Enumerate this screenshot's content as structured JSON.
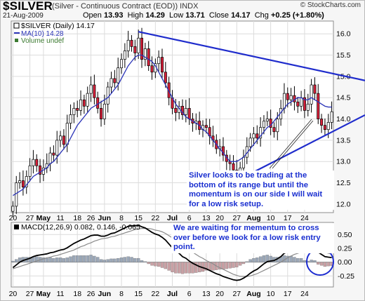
{
  "header": {
    "symbol": "$SILVER",
    "description": "(Silver - Continuous Contract (EOD))  INDX",
    "copyright": "© StockCharts.com",
    "date": "21-Aug-2009",
    "ohlc": {
      "open_label": "Open",
      "open": "13.93",
      "high_label": "High",
      "high": "14.29",
      "low_label": "Low",
      "low": "13.71",
      "close_label": "Close",
      "close": "14.17",
      "chg_label": "Chg",
      "chg": "+0.25 (+1.80%)"
    }
  },
  "colors": {
    "up": "#ffffff",
    "down": "#d9203a",
    "candle_outline": "#000000",
    "ma": "#2b34b8",
    "trend": "#1f2ccc",
    "macd": "#000000",
    "signal": "#8a8a8a",
    "hist_pos": "#9aa7b8",
    "hist_neg": "#c9a0a4",
    "circle": "#1c2bd0"
  },
  "chart_data": [
    {
      "type": "candlestick",
      "title": "$SILVER (Daily) 14.17",
      "legend": [
        "$SILVER (Daily) 14.17",
        "MA(10) 14.28",
        "Volume undef"
      ],
      "x_ticks": [
        "20",
        "27",
        "May",
        "11",
        "18",
        "26",
        "Jun",
        "8",
        "15",
        "22",
        "Jul",
        "6",
        "13",
        "20",
        "27",
        "Aug",
        "10",
        "17",
        "24"
      ],
      "y_ticks": [
        "12.0",
        "12.5",
        "13.0",
        "13.5",
        "14.0",
        "14.5",
        "15.0",
        "15.5",
        "16.0"
      ],
      "ylim": [
        11.8,
        16.3
      ],
      "grid": true,
      "closes": [
        11.95,
        12.5,
        12.55,
        12.4,
        12.65,
        12.9,
        13.05,
        12.9,
        12.7,
        12.85,
        12.95,
        13.2,
        13.15,
        13.5,
        13.6,
        13.4,
        13.9,
        14.1,
        14.25,
        14.2,
        14.45,
        14.3,
        14.6,
        14.8,
        14.5,
        14.25,
        14.0,
        14.35,
        14.75,
        14.95,
        14.85,
        15.2,
        15.4,
        15.6,
        15.85,
        15.7,
        15.55,
        15.9,
        15.4,
        15.65,
        15.25,
        15.1,
        15.3,
        15.45,
        15.1,
        14.85,
        14.5,
        14.25,
        14.15,
        14.3,
        14.1,
        14.25,
        14.0,
        13.9,
        13.95,
        13.75,
        13.85,
        13.8,
        13.6,
        13.5,
        13.3,
        13.35,
        13.15,
        13.0,
        12.95,
        12.8,
        12.75,
        12.85,
        13.1,
        13.35,
        13.55,
        13.65,
        13.55,
        13.8,
        13.95,
        14.0,
        13.8,
        13.7,
        14.0,
        14.25,
        14.6,
        14.45,
        14.55,
        14.4,
        14.3,
        14.5,
        14.2,
        14.35,
        14.8,
        14.6,
        14.0,
        13.85,
        13.75,
        13.92,
        14.17
      ],
      "ma10_label": "MA(10) 14.28",
      "ma10": [
        12.2,
        12.25,
        12.3,
        12.35,
        12.45,
        12.55,
        12.65,
        12.7,
        12.75,
        12.8,
        12.85,
        12.95,
        13.0,
        13.1,
        13.2,
        13.3,
        13.4,
        13.55,
        13.7,
        13.85,
        13.95,
        14.05,
        14.15,
        14.25,
        14.3,
        14.35,
        14.4,
        14.45,
        14.5,
        14.6,
        14.7,
        14.8,
        14.95,
        15.1,
        15.25,
        15.35,
        15.45,
        15.5,
        15.5,
        15.45,
        15.4,
        15.35,
        15.25,
        15.1,
        14.95,
        14.8,
        14.65,
        14.5,
        14.35,
        14.25,
        14.15,
        14.05,
        14.0,
        13.95,
        13.9,
        13.85,
        13.75,
        13.7,
        13.6,
        13.5,
        13.4,
        13.3,
        13.2,
        13.1,
        13.0,
        13.0,
        13.0,
        13.05,
        13.1,
        13.2,
        13.3,
        13.4,
        13.5,
        13.6,
        13.7,
        13.8,
        13.85,
        13.95,
        14.05,
        14.15,
        14.25,
        14.35,
        14.4,
        14.45,
        14.5,
        14.5,
        14.45,
        14.45,
        14.5,
        14.45,
        14.4,
        14.35,
        14.3,
        14.28,
        14.28
      ],
      "trendlines": [
        {
          "from": [
            37,
            16.05
          ],
          "to": [
            104,
            14.9
          ]
        },
        {
          "from": [
            66,
            12.55
          ],
          "to": [
            104,
            14.1
          ]
        }
      ],
      "annotation": "Silver looks to be trading at the bottom of its range but until the momentum is on our side I will wait for a low risk setup."
    },
    {
      "type": "line",
      "title": "MACD(12,26,9) 0.082, 0.146, -0.065",
      "y_ticks": [
        "0.50",
        "0.25",
        "0.00",
        "-0.25"
      ],
      "ylim": [
        -0.45,
        0.72
      ],
      "x_ticks": [
        "20",
        "27",
        "May",
        "11",
        "18",
        "26",
        "Jun",
        "8",
        "15",
        "22",
        "Jul",
        "6",
        "13",
        "20",
        "27",
        "Aug",
        "10",
        "17",
        "24"
      ],
      "series": [
        {
          "name": "MACD",
          "values": [
            -0.1,
            -0.05,
            0.0,
            0.03,
            0.05,
            0.07,
            0.1,
            0.12,
            0.13,
            0.14,
            0.15,
            0.17,
            0.18,
            0.2,
            0.22,
            0.23,
            0.26,
            0.3,
            0.34,
            0.37,
            0.4,
            0.42,
            0.45,
            0.48,
            0.49,
            0.49,
            0.47,
            0.47,
            0.49,
            0.52,
            0.53,
            0.56,
            0.59,
            0.62,
            0.65,
            0.66,
            0.66,
            0.67,
            0.64,
            0.62,
            0.58,
            0.54,
            0.51,
            0.49,
            0.45,
            0.4,
            0.33,
            0.26,
            0.2,
            0.16,
            0.1,
            0.07,
            0.02,
            -0.02,
            -0.05,
            -0.08,
            -0.1,
            -0.12,
            -0.15,
            -0.18,
            -0.21,
            -0.23,
            -0.26,
            -0.28,
            -0.3,
            -0.32,
            -0.33,
            -0.32,
            -0.29,
            -0.25,
            -0.2,
            -0.16,
            -0.13,
            -0.08,
            -0.03,
            0.01,
            0.02,
            0.03,
            0.06,
            0.1,
            0.16,
            0.19,
            0.22,
            0.23,
            0.23,
            0.25,
            0.23,
            0.23,
            0.26,
            0.25,
            0.18,
            0.14,
            0.1,
            0.09,
            0.082
          ]
        },
        {
          "name": "Signal",
          "values": [
            -0.12,
            -0.1,
            -0.08,
            -0.06,
            -0.04,
            -0.02,
            0.0,
            0.02,
            0.04,
            0.06,
            0.08,
            0.09,
            0.11,
            0.12,
            0.14,
            0.16,
            0.18,
            0.2,
            0.22,
            0.25,
            0.28,
            0.3,
            0.33,
            0.35,
            0.38,
            0.4,
            0.42,
            0.43,
            0.44,
            0.46,
            0.47,
            0.49,
            0.51,
            0.53,
            0.55,
            0.57,
            0.59,
            0.6,
            0.61,
            0.61,
            0.61,
            0.6,
            0.58,
            0.57,
            0.55,
            0.52,
            0.48,
            0.44,
            0.4,
            0.36,
            0.31,
            0.27,
            0.22,
            0.18,
            0.14,
            0.1,
            0.07,
            0.03,
            0.0,
            -0.03,
            -0.07,
            -0.1,
            -0.13,
            -0.16,
            -0.19,
            -0.22,
            -0.24,
            -0.26,
            -0.26,
            -0.26,
            -0.25,
            -0.23,
            -0.21,
            -0.18,
            -0.15,
            -0.12,
            -0.09,
            -0.06,
            -0.03,
            0.0,
            0.04,
            0.08,
            0.11,
            0.14,
            0.16,
            0.18,
            0.2,
            0.21,
            0.22,
            0.22,
            0.22,
            0.2,
            0.18,
            0.16,
            0.146
          ]
        }
      ],
      "histogram_label": "-0.065",
      "annotation": "We are waiting for mementum to cross over before we look for a low risk entry point."
    }
  ]
}
